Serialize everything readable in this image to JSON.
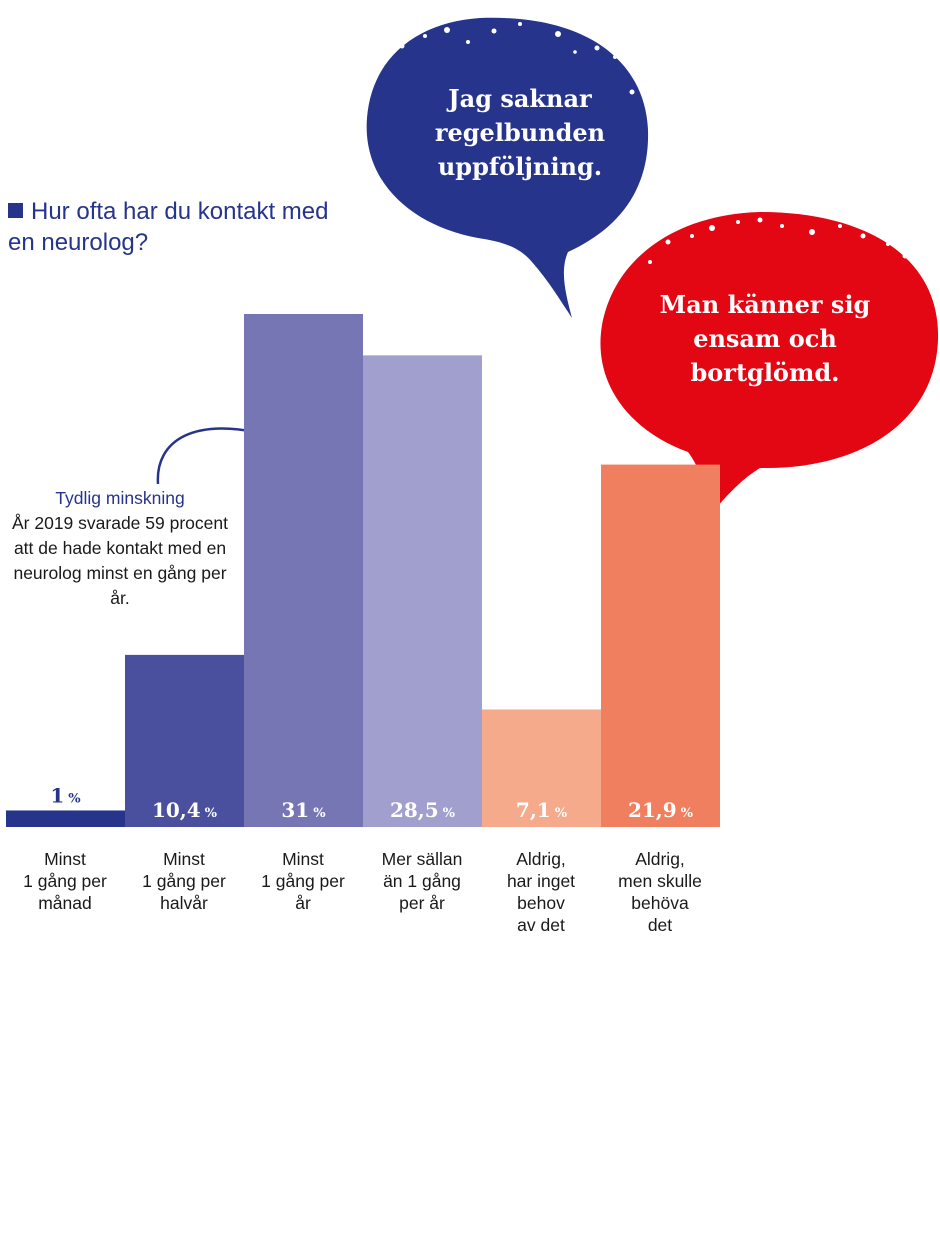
{
  "title": "Hur ofta har du kontakt med en neurolog?",
  "annotation": {
    "heading": "Tydlig minskning",
    "body": "År 2019 svarade 59 procent att de hade kontakt med en neurolog minst en gång per år."
  },
  "quotes": [
    {
      "text": "Jag saknar regelbunden uppföljning.",
      "color": "#26348b"
    },
    {
      "text": "Man känner sig ensam och bortglömd.",
      "color": "#e30613"
    }
  ],
  "chart_data": {
    "type": "bar",
    "title": "Hur ofta har du kontakt med en neurolog?",
    "unit": "%",
    "categories": [
      "Minst\n1 gång per\nmånad",
      "Minst\n1 gång per\nhalvår",
      "Minst\n1 gång per\når",
      "Mer sällan\nän 1 gång\nper år",
      "Aldrig,\nhar inget\nbehov\nav det",
      "Aldrig,\nmen skulle\nbehöva\ndet"
    ],
    "values": [
      1,
      10.4,
      31,
      28.5,
      7.1,
      21.9
    ],
    "value_labels": [
      "1",
      "10,4",
      "31",
      "28,5",
      "7,1",
      "21,9"
    ],
    "colors": [
      "#26348b",
      "#4b509e",
      "#7676b4",
      "#a19fcd",
      "#f5aa8c",
      "#ef7f5e"
    ],
    "ylim": [
      0,
      31
    ]
  }
}
